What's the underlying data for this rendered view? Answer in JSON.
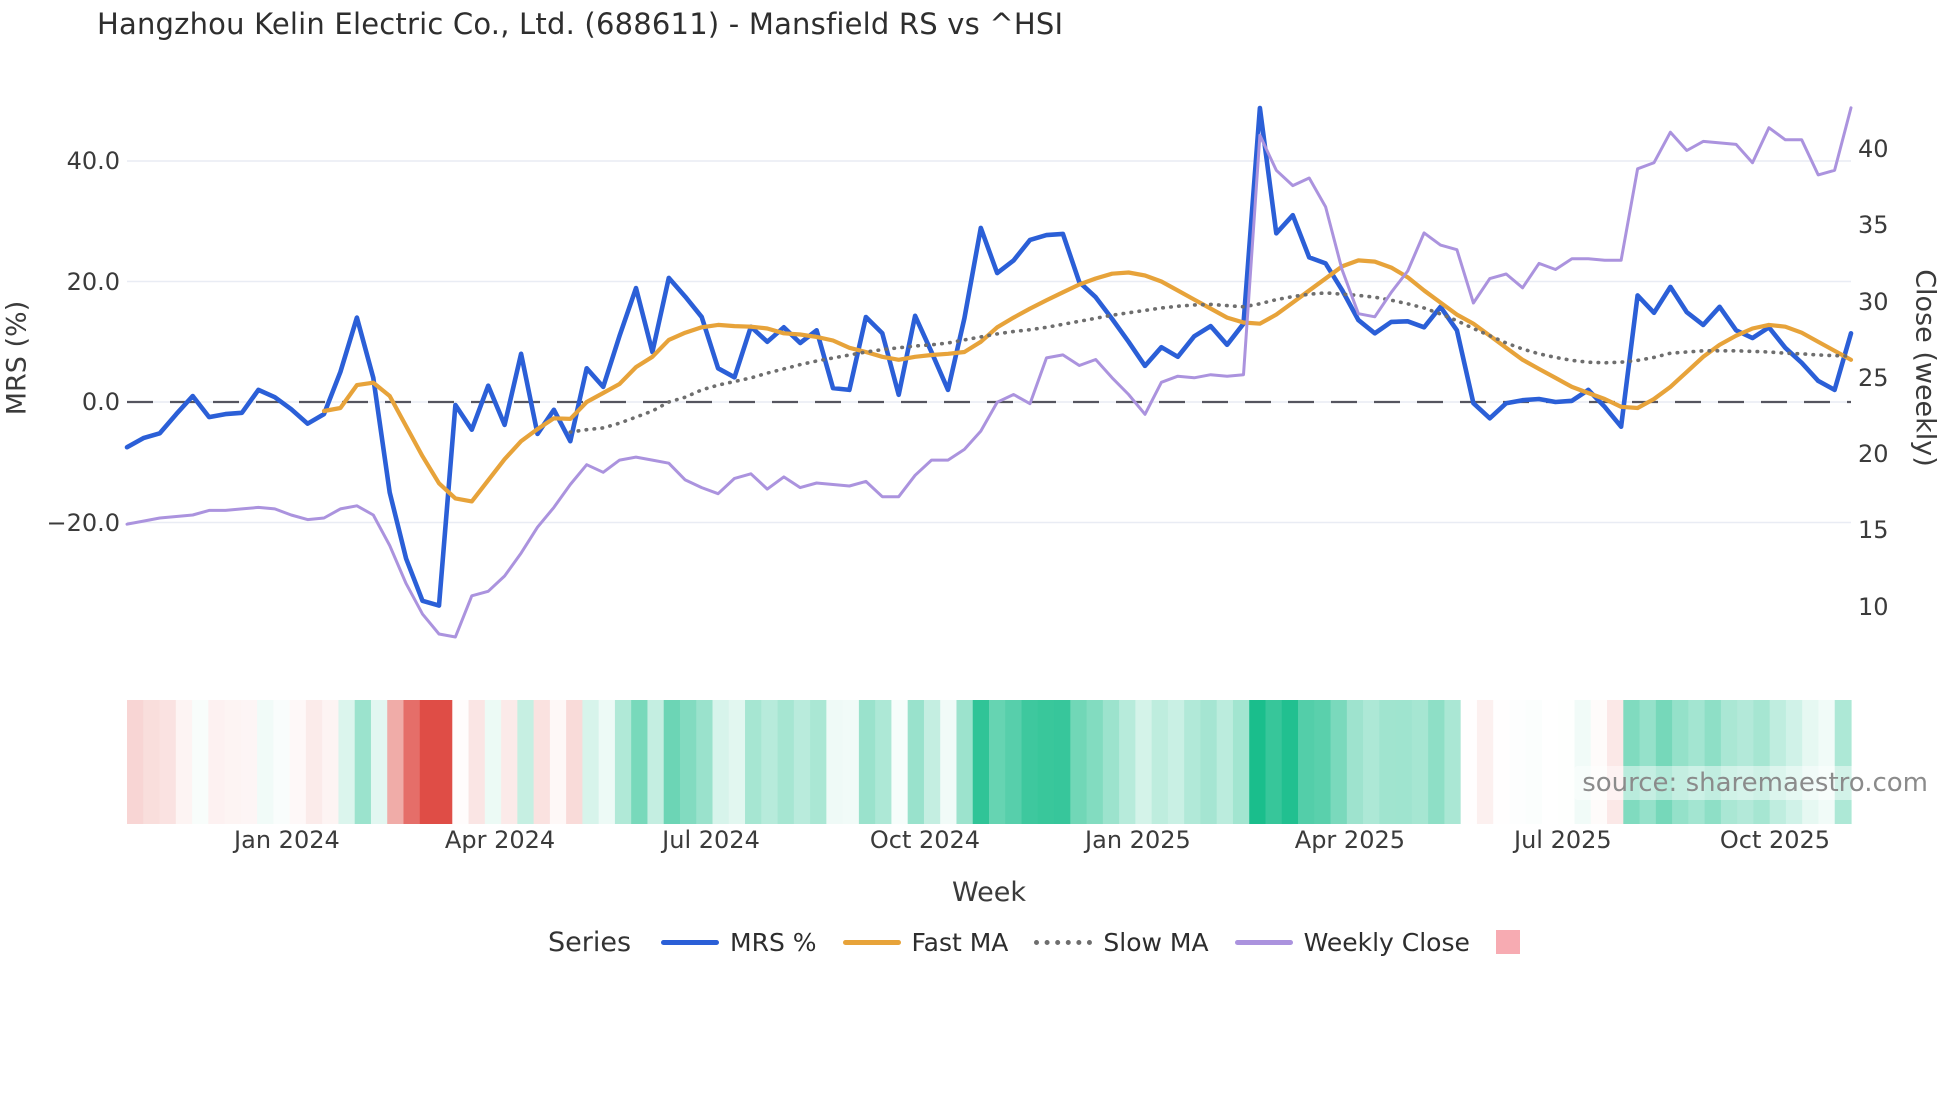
{
  "title": "Hangzhou Kelin Electric Co., Ltd. (688611) - Mansfield RS vs ^HSI",
  "source": "source: sharemaestro.com",
  "axes": {
    "left": {
      "title": "MRS (%)",
      "ticks": [
        {
          "label": "40.0",
          "value": 40
        },
        {
          "label": "20.0",
          "value": 20
        },
        {
          "label": "0.0",
          "value": 0
        },
        {
          "label": "−20.0",
          "value": -20
        }
      ]
    },
    "right": {
      "title": "Close (weekly)",
      "ticks": [
        {
          "label": "40",
          "value": 40
        },
        {
          "label": "35",
          "value": 35
        },
        {
          "label": "30",
          "value": 30
        },
        {
          "label": "25",
          "value": 25
        },
        {
          "label": "20",
          "value": 20
        },
        {
          "label": "15",
          "value": 15
        },
        {
          "label": "10",
          "value": 10
        }
      ]
    },
    "x": {
      "title": "Week",
      "ticks": [
        {
          "label": "Jan 2024",
          "week": 9.74
        },
        {
          "label": "Apr 2024",
          "week": 22.72
        },
        {
          "label": "Jul 2024",
          "week": 35.57
        },
        {
          "label": "Oct 2024",
          "week": 48.6
        },
        {
          "label": "Jan 2025",
          "week": 61.57
        },
        {
          "label": "Apr 2025",
          "week": 74.48
        },
        {
          "label": "Jul 2025",
          "week": 87.45
        },
        {
          "label": "Oct 2025",
          "week": 100.37
        }
      ]
    }
  },
  "legend": {
    "series_label": "Series",
    "items": [
      {
        "label": "MRS %",
        "swatch": "line",
        "color": "#2b5fd7"
      },
      {
        "label": "Fast MA",
        "swatch": "line",
        "color": "#e7a33a"
      },
      {
        "label": "Slow MA",
        "swatch": "dotted",
        "color": "#6e6e6e"
      },
      {
        "label": "Weekly Close",
        "swatch": "line",
        "color": "#ab93de"
      },
      {
        "label": "",
        "swatch": "square",
        "color": "#f7abb2"
      }
    ]
  },
  "colors": {
    "grid": "#e9ecf4",
    "zero_line": "#55555f",
    "mrs": "#2b5fd7",
    "fast_ma": "#e7a33a",
    "slow_ma": "#6e6e6e",
    "close": "#ab93de",
    "heat_green": "#1abe8c",
    "heat_red": "#df4d46"
  },
  "chart_data": {
    "type": "line",
    "title": "Hangzhou Kelin Electric Co., Ltd. (688611) - Mansfield RS vs ^HSI",
    "xlabel": "Week",
    "x_unit": "weekly index, w0 ≈ late Oct 2023 → w105 ≈ early Nov 2025",
    "weeks": 106,
    "left_axis": {
      "label": "MRS (%)",
      "range": [
        -38,
        52
      ],
      "gridlines": [
        40,
        20,
        0,
        -20
      ],
      "zero_dashed": true
    },
    "right_axis": {
      "label": "Close (weekly)",
      "range": [
        7,
        44
      ],
      "ticks": [
        40,
        35,
        30,
        25,
        20,
        15,
        10
      ]
    },
    "legend_position": "bottom",
    "series": [
      {
        "name": "MRS %",
        "axis": "left",
        "color": "#2b5fd7",
        "style": "solid",
        "width": 4.6,
        "start_week": 0,
        "values": [
          -7.5,
          -6.0,
          -5.2,
          -2.0,
          1.0,
          -2.5,
          -2.0,
          -1.8,
          2.0,
          0.8,
          -1.2,
          -3.6,
          -2.0,
          5.0,
          14.0,
          4.0,
          -15.0,
          -26.0,
          -33.0,
          -33.8,
          -0.5,
          -4.6,
          2.7,
          -3.8,
          8.0,
          -5.3,
          -1.3,
          -6.5,
          5.6,
          2.5,
          11.0,
          18.9,
          8.3,
          20.6,
          17.5,
          14.1,
          5.6,
          4.1,
          12.5,
          10.0,
          12.4,
          9.8,
          11.9,
          2.3,
          2.0,
          14.1,
          11.4,
          1.2,
          14.3,
          8.3,
          2.0,
          13.9,
          28.9,
          21.4,
          23.5,
          26.9,
          27.7,
          27.9,
          19.9,
          17.4,
          13.8,
          10.0,
          6.0,
          9.1,
          7.5,
          10.9,
          12.6,
          9.5,
          13.0,
          48.8,
          28.0,
          31.0,
          24.0,
          23.0,
          18.6,
          13.6,
          11.4,
          13.3,
          13.4,
          12.4,
          15.8,
          11.9,
          -0.2,
          -2.7,
          -0.2,
          0.3,
          0.5,
          0.0,
          0.2,
          2.0,
          -0.8,
          -4.1,
          17.7,
          14.8,
          19.1,
          14.9,
          12.8,
          15.8,
          11.9,
          10.6,
          12.4,
          9.0,
          6.5,
          3.5,
          2.0,
          11.4
        ]
      },
      {
        "name": "Fast MA",
        "axis": "left",
        "color": "#e7a33a",
        "style": "solid",
        "width": 4.2,
        "start_week": 12,
        "values": [
          -1.5,
          -1.0,
          2.8,
          3.2,
          1.0,
          -4.0,
          -9.0,
          -13.5,
          -16.0,
          -16.5,
          -13.0,
          -9.5,
          -6.5,
          -4.5,
          -2.7,
          -2.8,
          0.0,
          1.5,
          3.0,
          5.8,
          7.5,
          10.3,
          11.5,
          12.4,
          12.8,
          12.6,
          12.5,
          12.2,
          11.4,
          11.2,
          10.8,
          10.2,
          9.0,
          8.3,
          7.5,
          7.0,
          7.5,
          7.8,
          8.0,
          8.3,
          10.0,
          12.4,
          14.0,
          15.5,
          16.9,
          18.2,
          19.5,
          20.5,
          21.3,
          21.5,
          21.0,
          20.0,
          18.5,
          17.0,
          15.5,
          14.0,
          13.2,
          13.0,
          14.5,
          16.5,
          18.5,
          20.5,
          22.5,
          23.5,
          23.3,
          22.3,
          20.7,
          18.5,
          16.5,
          14.5,
          13.0,
          11.0,
          9.0,
          7.0,
          5.5,
          4.0,
          2.5,
          1.5,
          0.5,
          -0.8,
          -1.0,
          0.5,
          2.5,
          5.0,
          7.5,
          9.5,
          11.0,
          12.2,
          12.8,
          12.5,
          11.5,
          10.0,
          8.5,
          7.0
        ]
      },
      {
        "name": "Slow MA",
        "axis": "left",
        "color": "#6e6e6e",
        "style": "dotted",
        "width": 3.6,
        "start_week": 27,
        "values": [
          -5.0,
          -4.6,
          -4.3,
          -3.5,
          -2.5,
          -1.5,
          0.0,
          0.8,
          2.0,
          2.8,
          3.4,
          4.0,
          4.8,
          5.5,
          6.2,
          6.8,
          7.3,
          7.8,
          8.3,
          8.7,
          9.0,
          9.3,
          9.5,
          9.8,
          10.3,
          10.8,
          11.3,
          11.7,
          12.0,
          12.4,
          12.9,
          13.4,
          13.9,
          14.4,
          14.8,
          15.2,
          15.6,
          15.9,
          16.1,
          16.2,
          16.0,
          15.8,
          16.3,
          17.0,
          17.5,
          17.9,
          18.1,
          17.9,
          17.7,
          17.4,
          16.9,
          16.3,
          15.6,
          14.6,
          13.5,
          12.2,
          11.0,
          9.8,
          8.8,
          8.0,
          7.4,
          6.9,
          6.6,
          6.5,
          6.6,
          6.9,
          7.4,
          8.1,
          8.3,
          8.5,
          8.5,
          8.5,
          8.4,
          8.3,
          8.1,
          8.0,
          7.8,
          7.7,
          7.6
        ]
      },
      {
        "name": "Weekly Close",
        "axis": "right",
        "color": "#ab93de",
        "style": "solid",
        "width": 3.0,
        "start_week": 0,
        "values": [
          15.4,
          15.6,
          15.8,
          15.9,
          16.0,
          16.3,
          16.3,
          16.4,
          16.5,
          16.4,
          16.0,
          15.7,
          15.8,
          16.4,
          16.6,
          16.0,
          14.0,
          11.5,
          9.5,
          8.2,
          8.0,
          10.7,
          11.0,
          12.0,
          13.5,
          15.2,
          16.5,
          18.0,
          19.3,
          18.8,
          19.6,
          19.8,
          19.6,
          19.4,
          18.3,
          17.8,
          17.4,
          18.4,
          18.7,
          17.7,
          18.5,
          17.8,
          18.1,
          18.0,
          17.9,
          18.2,
          17.2,
          17.2,
          18.6,
          19.6,
          19.6,
          20.3,
          21.5,
          23.4,
          23.9,
          23.3,
          26.3,
          26.5,
          25.8,
          26.2,
          25.0,
          23.9,
          22.6,
          24.7,
          25.1,
          25.0,
          25.2,
          25.1,
          25.2,
          40.9,
          38.6,
          37.6,
          38.1,
          36.2,
          32.1,
          29.2,
          29.0,
          30.6,
          32.0,
          34.5,
          33.7,
          33.4,
          29.9,
          31.5,
          31.8,
          30.9,
          32.5,
          32.1,
          32.8,
          32.8,
          32.7,
          32.7,
          38.7,
          39.1,
          41.1,
          39.9,
          40.5,
          40.4,
          40.3,
          39.1,
          41.4,
          40.6,
          40.6,
          38.3,
          38.6,
          42.7
        ]
      }
    ],
    "heatmap_strip": {
      "description": "weekly color band below plot, color derived from MRS % value",
      "derived_from": "MRS %",
      "positive_color": "#1abe8c",
      "negative_color": "#df4d46",
      "neutral_color": "#ffffff",
      "max_abs_value": 32
    }
  }
}
